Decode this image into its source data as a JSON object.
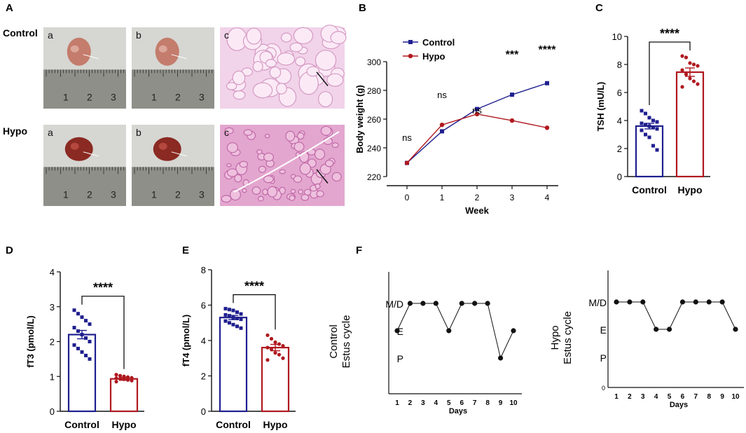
{
  "panel_letters": {
    "A": "A",
    "B": "B",
    "C": "C",
    "D": "D",
    "E": "E",
    "F": "F"
  },
  "panel_a": {
    "row_labels": [
      "Control",
      "Hypo"
    ],
    "sub_labels": [
      "a",
      "b",
      "c"
    ],
    "ruler_numbers": [
      "1",
      "2",
      "3"
    ]
  },
  "colors": {
    "control": "#1f1f8f",
    "hypo": "#b0181f",
    "marker": "#111111"
  },
  "chart_data": [
    {
      "id": "B",
      "type": "line",
      "xlabel": "Week",
      "ylabel": "Body weight (g)",
      "x": [
        0,
        1,
        2,
        3,
        4
      ],
      "xticks": [
        "0",
        "1",
        "2",
        "3",
        "4"
      ],
      "ylim": [
        220,
        300
      ],
      "yticks": [
        "220",
        "240",
        "260",
        "280",
        "300"
      ],
      "series": [
        {
          "name": "Control",
          "values": [
            229.5,
            251.5,
            267,
            277,
            285
          ]
        },
        {
          "name": "Hypo",
          "values": [
            229.5,
            256,
            263.5,
            259,
            254
          ]
        }
      ],
      "annotations": [
        "ns",
        "ns",
        "ns",
        "***",
        "****"
      ],
      "legend": "top-left",
      "grid": false
    },
    {
      "id": "C",
      "type": "bar",
      "ylabel": "TSH (mU/L)",
      "categories": [
        "Control",
        "Hypo"
      ],
      "values": [
        3.6,
        7.45
      ],
      "sem": [
        0.2,
        0.3
      ],
      "points": [
        [
          4.7,
          4.5,
          4.2,
          4.0,
          3.9,
          3.8,
          3.7,
          3.6,
          3.5,
          3.4,
          3.3,
          3.0,
          2.8,
          2.2,
          1.9
        ],
        [
          8.6,
          8.5,
          8.1,
          8.0,
          7.9,
          7.6,
          7.3,
          7.0,
          6.8,
          6.6,
          6.4
        ]
      ],
      "ylim": [
        0,
        10
      ],
      "yticks": [
        "0",
        "2",
        "4",
        "6",
        "8",
        "10"
      ],
      "significance": "****"
    },
    {
      "id": "D",
      "type": "bar",
      "ylabel": "fT3 (pmol/L)",
      "categories": [
        "Control",
        "Hypo"
      ],
      "values": [
        2.2,
        0.93
      ],
      "sem": [
        0.12,
        0.04
      ],
      "points": [
        [
          2.9,
          2.8,
          2.7,
          2.6,
          2.5,
          2.4,
          2.3,
          2.2,
          2.1,
          2.0,
          1.9,
          1.8,
          1.7,
          1.6,
          1.5
        ],
        [
          1.05,
          1.02,
          1.0,
          0.98,
          0.96,
          0.95,
          0.93,
          0.92,
          0.9,
          0.88,
          0.85
        ]
      ],
      "ylim": [
        0,
        4
      ],
      "yticks": [
        "0",
        "1",
        "2",
        "3",
        "4"
      ],
      "significance": "****"
    },
    {
      "id": "E",
      "type": "bar",
      "ylabel": "fT4 (pmol/L)",
      "categories": [
        "Control",
        "Hypo"
      ],
      "values": [
        5.3,
        3.6
      ],
      "sem": [
        0.12,
        0.18
      ],
      "points": [
        [
          5.8,
          5.75,
          5.7,
          5.6,
          5.5,
          5.45,
          5.4,
          5.3,
          5.25,
          5.2,
          5.1,
          5.0,
          4.9,
          4.8,
          4.7
        ],
        [
          4.3,
          4.1,
          3.9,
          3.8,
          3.7,
          3.6,
          3.5,
          3.3,
          3.2,
          3.0,
          2.9
        ]
      ],
      "ylim": [
        0,
        8
      ],
      "yticks": [
        "0",
        "2",
        "4",
        "6",
        "8"
      ],
      "significance": "****"
    },
    {
      "id": "F_control",
      "type": "line",
      "ylabel_lines": [
        "Control",
        "Estus cycle"
      ],
      "xlabel": "Days",
      "x": [
        1,
        2,
        3,
        4,
        5,
        6,
        7,
        8,
        9,
        10
      ],
      "xticks": [
        "1",
        "2",
        "3",
        "4",
        "5",
        "6",
        "7",
        "8",
        "9",
        "10"
      ],
      "ystates": [
        "P",
        "E",
        "M/D"
      ],
      "ystate_levels": [
        1,
        2,
        3
      ],
      "values": [
        2,
        3,
        3,
        3,
        2,
        3,
        3,
        3,
        1,
        2
      ]
    },
    {
      "id": "F_hypo",
      "type": "line",
      "ylabel_lines": [
        "Hypo",
        "Estus cycle"
      ],
      "xlabel": "Days",
      "x": [
        1,
        2,
        3,
        4,
        5,
        6,
        7,
        8,
        9,
        10
      ],
      "xticks": [
        "1",
        "2",
        "3",
        "4",
        "5",
        "6",
        "7",
        "8",
        "9",
        "10"
      ],
      "ystates": [
        "P",
        "E",
        "M/D"
      ],
      "ystate_levels": [
        1,
        2,
        3
      ],
      "zero_label": "0",
      "values": [
        3,
        3,
        3,
        2,
        2,
        3,
        3,
        3,
        3,
        2
      ]
    }
  ]
}
